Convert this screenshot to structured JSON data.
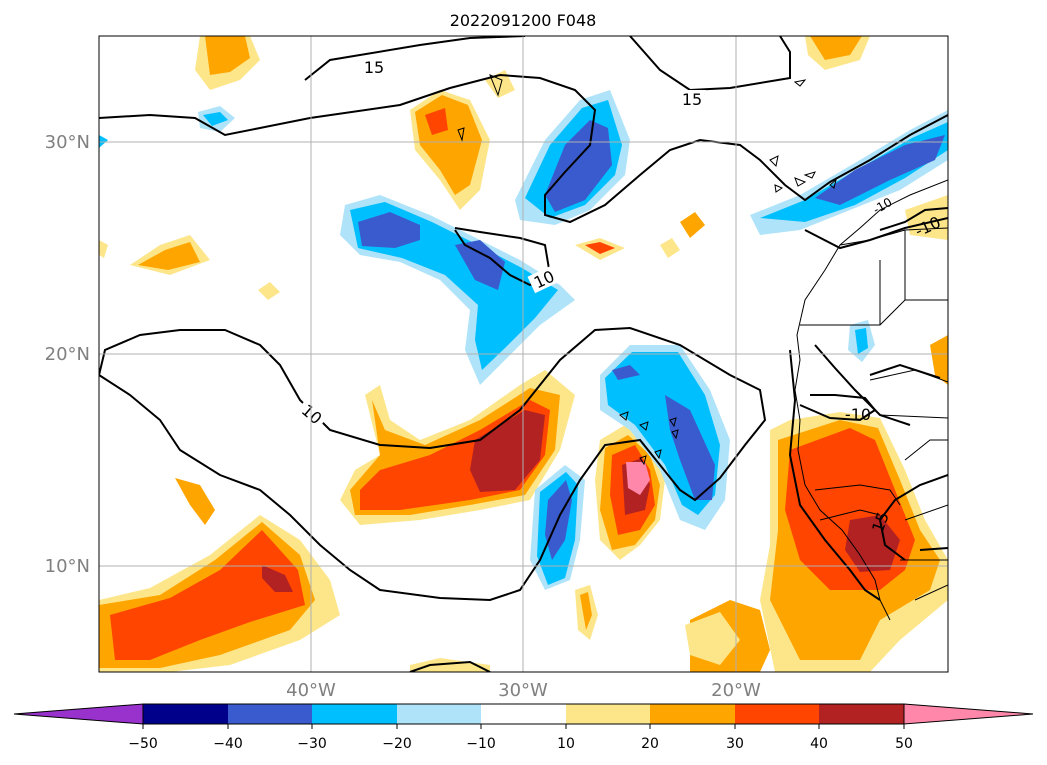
{
  "title": "2022091200 F048",
  "map": {
    "lat_labels": [
      "30°N",
      "20°N",
      "10°N"
    ],
    "lon_labels": [
      "40°W",
      "30°W",
      "20°W"
    ],
    "contour_labels": [
      "15",
      "15",
      "-10",
      "10",
      "10",
      "-10",
      "15",
      "-10"
    ],
    "contour_color": "#000000",
    "gridline_color": "#b0b0b0",
    "grid": true
  },
  "colorbar": {
    "levels": [
      -50,
      -40,
      -30,
      -20,
      -10,
      10,
      20,
      30,
      40,
      50
    ],
    "tick_labels": [
      "−50",
      "−40",
      "−30",
      "−20",
      "−10",
      "10",
      "20",
      "30",
      "40",
      "50"
    ],
    "under_color": "#9932cc",
    "over_color": "#ff88aa",
    "colors": [
      "#00008b",
      "#3a5bcd",
      "#00bfff",
      "#afe3fa",
      "#ffffff",
      "#fde68a",
      "#ffa500",
      "#ff4500",
      "#b22222"
    ]
  }
}
